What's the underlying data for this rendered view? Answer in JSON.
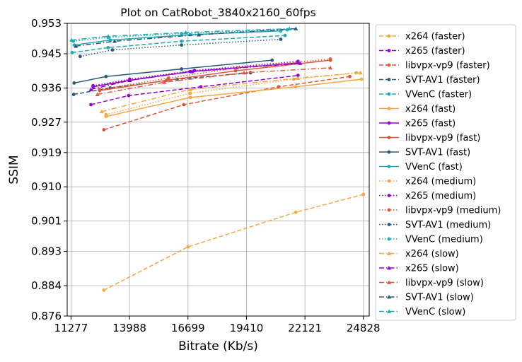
{
  "chart_data": {
    "type": "line",
    "title": "Plot on CatRobot_3840x2160_60fps",
    "xlabel": "Bitrate (Kb/s)",
    "ylabel": "SSIM",
    "xlim": [
      11100,
      25100
    ],
    "ylim": [
      0.876,
      0.953
    ],
    "xticks": [
      11277,
      13988,
      16699,
      19410,
      22121,
      24828
    ],
    "xtick_labels": [
      "11277",
      "13988",
      "16699",
      "19410",
      "22121",
      "24828"
    ],
    "yticks": [
      0.876,
      0.884,
      0.893,
      0.901,
      0.91,
      0.919,
      0.927,
      0.936,
      0.945,
      0.953
    ],
    "ytick_labels": [
      "0.876",
      "0.884",
      "0.893",
      "0.901",
      "0.910",
      "0.919",
      "0.927",
      "0.936",
      "0.945",
      "0.953"
    ],
    "grid": true,
    "legend_position": "outside-right",
    "series": [
      {
        "name": "x264 (faster)",
        "color": "#f5a742",
        "dash": "dashed",
        "marker": "circle",
        "points": [
          [
            12800,
            0.8828
          ],
          [
            16700,
            0.8942
          ],
          [
            21700,
            0.9033
          ],
          [
            24830,
            0.908
          ]
        ]
      },
      {
        "name": "x265 (faster)",
        "color": "#9400d3",
        "dash": "dashed",
        "marker": "circle",
        "points": [
          [
            12200,
            0.9316
          ],
          [
            13950,
            0.934
          ],
          [
            17300,
            0.9363
          ],
          [
            21800,
            0.9393
          ]
        ]
      },
      {
        "name": "libvpx-vp9 (faster)",
        "color": "#e0573a",
        "dash": "dashed",
        "marker": "circle",
        "points": [
          [
            12800,
            0.925
          ],
          [
            16500,
            0.9316
          ],
          [
            20900,
            0.9363
          ],
          [
            24200,
            0.939
          ]
        ]
      },
      {
        "name": "SVT-AV1 (faster)",
        "color": "#2a5a7a",
        "dash": "dashed",
        "marker": "circle",
        "points": [
          [
            11400,
            0.9343
          ],
          [
            13100,
            0.936
          ],
          [
            16200,
            0.9383
          ],
          [
            19600,
            0.94
          ]
        ]
      },
      {
        "name": "VVenC (faster)",
        "color": "#22a9b6",
        "dash": "dashed",
        "marker": "circle",
        "points": [
          [
            11330,
            0.9453
          ],
          [
            13000,
            0.9466
          ],
          [
            16400,
            0.9483
          ],
          [
            21200,
            0.9498
          ]
        ]
      },
      {
        "name": "x264 (fast)",
        "color": "#f5a742",
        "dash": "solid",
        "marker": "circle",
        "points": [
          [
            12900,
            0.9285
          ],
          [
            16800,
            0.9335
          ],
          [
            21700,
            0.9363
          ],
          [
            24750,
            0.9383
          ]
        ]
      },
      {
        "name": "x265 (fast)",
        "color": "#9400d3",
        "dash": "solid",
        "marker": "circle",
        "points": [
          [
            12300,
            0.9363
          ],
          [
            14000,
            0.938
          ],
          [
            16800,
            0.9403
          ],
          [
            21800,
            0.9426
          ]
        ]
      },
      {
        "name": "libvpx-vp9 (fast)",
        "color": "#e0573a",
        "dash": "solid",
        "marker": "circle",
        "points": [
          [
            12600,
            0.9353
          ],
          [
            15700,
            0.938
          ],
          [
            18900,
            0.9405
          ],
          [
            23300,
            0.9433
          ]
        ]
      },
      {
        "name": "SVT-AV1 (fast)",
        "color": "#2a5a7a",
        "dash": "solid",
        "marker": "circle",
        "points": [
          [
            11420,
            0.9373
          ],
          [
            12900,
            0.939
          ],
          [
            16400,
            0.941
          ],
          [
            20600,
            0.9433
          ]
        ]
      },
      {
        "name": "VVenC (fast)",
        "color": "#22a9b6",
        "dash": "solid",
        "marker": "circle",
        "points": [
          [
            11430,
            0.9473
          ],
          [
            13100,
            0.9486
          ],
          [
            16800,
            0.95
          ],
          [
            21000,
            0.951
          ]
        ]
      },
      {
        "name": "x264 (medium)",
        "color": "#f5a742",
        "dash": "dotted",
        "marker": "circle",
        "points": [
          [
            12900,
            0.929
          ],
          [
            16800,
            0.9346
          ],
          [
            21600,
            0.9383
          ],
          [
            24500,
            0.94
          ]
        ]
      },
      {
        "name": "x265 (medium)",
        "color": "#9400d3",
        "dash": "dotted",
        "marker": "circle",
        "points": [
          [
            12300,
            0.9366
          ],
          [
            14000,
            0.9383
          ],
          [
            17000,
            0.9406
          ],
          [
            21800,
            0.943
          ]
        ]
      },
      {
        "name": "libvpx-vp9 (medium)",
        "color": "#e0573a",
        "dash": "dotted",
        "marker": "circle",
        "points": [
          [
            12600,
            0.9356
          ],
          [
            15800,
            0.9386
          ],
          [
            19000,
            0.9413
          ],
          [
            23300,
            0.9436
          ]
        ]
      },
      {
        "name": "SVT-AV1 (medium)",
        "color": "#2a5a7a",
        "dash": "dotted",
        "marker": "circle",
        "points": [
          [
            11700,
            0.9443
          ],
          [
            13200,
            0.946
          ],
          [
            16400,
            0.9473
          ],
          [
            21000,
            0.9488
          ]
        ]
      },
      {
        "name": "VVenC (medium)",
        "color": "#22a9b6",
        "dash": "dotted",
        "marker": "circle",
        "points": [
          [
            11380,
            0.9483
          ],
          [
            13000,
            0.9493
          ],
          [
            16400,
            0.9503
          ],
          [
            21300,
            0.9513
          ]
        ]
      },
      {
        "name": "x264 (slow)",
        "color": "#f5a742",
        "dash": "dashdot",
        "marker": "triangle",
        "points": [
          [
            12700,
            0.9298
          ],
          [
            16800,
            0.9356
          ],
          [
            21800,
            0.9386
          ],
          [
            24700,
            0.94
          ]
        ]
      },
      {
        "name": "x265 (slow)",
        "color": "#9400d3",
        "dash": "dashdot",
        "marker": "triangle",
        "points": [
          [
            12200,
            0.9356
          ],
          [
            14000,
            0.938
          ],
          [
            16900,
            0.9403
          ],
          [
            21900,
            0.9425
          ]
        ]
      },
      {
        "name": "libvpx-vp9 (slow)",
        "color": "#e0573a",
        "dash": "dashdot",
        "marker": "triangle",
        "points": [
          [
            12500,
            0.9343
          ],
          [
            15600,
            0.9375
          ],
          [
            19300,
            0.94
          ],
          [
            23300,
            0.9413
          ]
        ]
      },
      {
        "name": "SVT-AV1 (slow)",
        "color": "#2a5a7a",
        "dash": "dashdot",
        "marker": "triangle",
        "points": [
          [
            11500,
            0.947
          ],
          [
            13300,
            0.9483
          ],
          [
            17200,
            0.95
          ],
          [
            21700,
            0.9516
          ]
        ]
      },
      {
        "name": "VVenC (slow)",
        "color": "#22a9b6",
        "dash": "dashdot",
        "marker": "triangle",
        "points": [
          [
            11300,
            0.9486
          ],
          [
            13000,
            0.9496
          ],
          [
            16600,
            0.9506
          ],
          [
            21400,
            0.9516
          ]
        ]
      }
    ]
  }
}
